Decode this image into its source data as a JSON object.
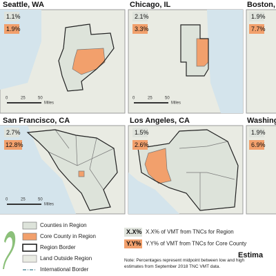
{
  "panels": [
    {
      "title": "Seattle, WA",
      "region_pct": "1.1%",
      "core_pct": "1.9%",
      "scale": [
        "0",
        "25",
        "50",
        "Miles"
      ]
    },
    {
      "title": "Chicago, IL",
      "region_pct": "2.1%",
      "core_pct": "3.3%",
      "scale": [
        "0",
        "25",
        "50",
        "Miles"
      ]
    },
    {
      "title": "Boston, M",
      "region_pct": "1.9%",
      "core_pct": "7.7%"
    },
    {
      "title": "San Francisco, CA",
      "region_pct": "2.7%",
      "core_pct": "12.8%",
      "scale": [
        "0",
        "25",
        "50",
        "Miles"
      ]
    },
    {
      "title": "Los Angeles, CA",
      "region_pct": "1.5%",
      "core_pct": "2.6%"
    },
    {
      "title": "Washing",
      "region_pct": "1.9%",
      "core_pct": "6.9%"
    }
  ],
  "legend": [
    "Counties in Region",
    "Core County in Region",
    "Region Border",
    "Land Outside Region",
    "International Border"
  ],
  "key": [
    {
      "sample": "X.X%",
      "label": "X.X% of VMT from TNCs for Region"
    },
    {
      "sample": "Y.Y%",
      "label": "Y.Y% of VMT from TNCs for Core County"
    }
  ],
  "note": "Note: Percentages represent midpoint between low and high estimates from September 2018 TNC VMT data.",
  "estimate_heading": "Estima"
}
